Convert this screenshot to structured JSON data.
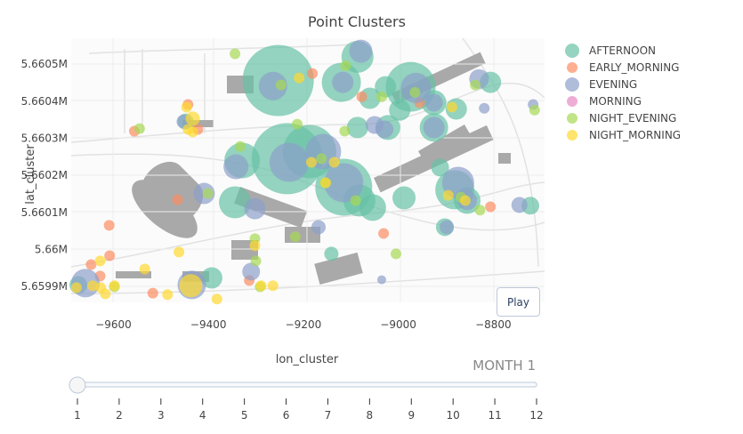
{
  "chart_data": {
    "type": "scatter",
    "title": "Point Clusters",
    "xlabel": "lon_cluster",
    "ylabel": "lat_cluster",
    "xlim": [
      -9689,
      -8692
    ],
    "ylim": [
      5659857,
      5660570
    ],
    "x_ticks": [
      -9600,
      -9400,
      -9200,
      -9000,
      -8800
    ],
    "x_tick_labels": [
      "−9600",
      "−9400",
      "−9200",
      "−9000",
      "−8800"
    ],
    "y_ticks": [
      5660500,
      5660400,
      5660300,
      5660200,
      5660100,
      5660000,
      5659900
    ],
    "y_tick_labels": [
      "5.6605M",
      "5.6604M",
      "5.6603M",
      "5.6602M",
      "5.6601M",
      "5.66M",
      "5.6599M"
    ],
    "legend_position": "right",
    "series": [
      {
        "name": "AFTERNOON",
        "color": "#66c2a5",
        "points": [
          [
            -9253,
            5660456,
            80
          ],
          [
            -8974,
            5660439,
            56
          ],
          [
            -9120,
            5660451,
            44
          ],
          [
            -9086,
            5660520,
            36
          ],
          [
            -9234,
            5660245,
            80
          ],
          [
            -9187,
            5660264,
            60
          ],
          [
            -9115,
            5660168,
            64
          ],
          [
            -9329,
            5660240,
            40
          ],
          [
            -9344,
            5660127,
            36
          ],
          [
            -8881,
            5660161,
            44
          ],
          [
            -8855,
            5660132,
            30
          ],
          [
            -8925,
            5660329,
            32
          ],
          [
            -8925,
            5660396,
            28
          ],
          [
            -8878,
            5660379,
            24
          ],
          [
            -8806,
            5660451,
            24
          ],
          [
            -9027,
            5660439,
            24
          ],
          [
            -9060,
            5660408,
            24
          ],
          [
            -9086,
            5660329,
            24
          ],
          [
            -8997,
            5660376,
            24
          ],
          [
            -9022,
            5660329,
            28
          ],
          [
            -9082,
            5660132,
            36
          ],
          [
            -9054,
            5660113,
            30
          ],
          [
            -8988,
            5660139,
            26
          ],
          [
            -8912,
            5660221,
            20
          ],
          [
            -8902,
            5660060,
            20
          ],
          [
            -8722,
            5660118,
            20
          ],
          [
            -9393,
            5659923,
            24
          ],
          [
            -9674,
            5659904,
            20
          ],
          [
            -9448,
            5660345,
            18
          ],
          [
            -9141,
            5659988,
            16
          ]
        ]
      },
      {
        "name": "EARLY_MORNING",
        "color": "#fc8d62",
        "points": [
          [
            -9181,
            5660475,
            12
          ],
          [
            -9556,
            5660319,
            12
          ],
          [
            -9443,
            5660391,
            12
          ],
          [
            -9465,
            5660134,
            12
          ],
          [
            -9422,
            5660324,
            12
          ],
          [
            -9609,
            5660065,
            12
          ],
          [
            -9608,
            5659983,
            12
          ],
          [
            -9647,
            5659959,
            12
          ],
          [
            -9628,
            5659928,
            12
          ],
          [
            -9517,
            5659882,
            12
          ],
          [
            -9031,
            5660043,
            12
          ],
          [
            -8806,
            5660115,
            12
          ],
          [
            -8955,
            5660396,
            12
          ],
          [
            -9077,
            5660412,
            12
          ],
          [
            -9314,
            5659916,
            12
          ]
        ]
      },
      {
        "name": "EVENING",
        "color": "#8da0cb",
        "points": [
          [
            -9264,
            5660441,
            32
          ],
          [
            -8963,
            5660436,
            34
          ],
          [
            -9117,
            5660451,
            24
          ],
          [
            -9079,
            5660535,
            26
          ],
          [
            -9230,
            5660235,
            44
          ],
          [
            -9158,
            5660264,
            40
          ],
          [
            -9115,
            5660180,
            44
          ],
          [
            -9342,
            5660223,
            28
          ],
          [
            -9302,
            5660110,
            24
          ],
          [
            -9409,
            5660151,
            24
          ],
          [
            -8874,
            5660180,
            36
          ],
          [
            -8855,
            5660132,
            22
          ],
          [
            -8925,
            5660329,
            24
          ],
          [
            -8925,
            5660396,
            20
          ],
          [
            -8830,
            5660460,
            22
          ],
          [
            -9050,
            5660336,
            20
          ],
          [
            -9029,
            5660324,
            20
          ],
          [
            -8898,
            5660060,
            16
          ],
          [
            -8745,
            5660120,
            18
          ],
          [
            -9435,
            5659904,
            32
          ],
          [
            -9659,
            5659909,
            32
          ],
          [
            -9310,
            5659940,
            20
          ],
          [
            -9168,
            5660060,
            16
          ],
          [
            -9035,
            5659918,
            10
          ],
          [
            -8819,
            5660381,
            12
          ],
          [
            -8716,
            5660391,
            12
          ],
          [
            -9452,
            5660345,
            16
          ]
        ]
      },
      {
        "name": "MORNING",
        "color": "#e78ac3",
        "points": []
      },
      {
        "name": "NIGHT_EVENING",
        "color": "#a6d854",
        "points": [
          [
            -9344,
            5660528,
            12
          ],
          [
            -9545,
            5660326,
            12
          ],
          [
            -9333,
            5660278,
            12
          ],
          [
            -9401,
            5660151,
            12
          ],
          [
            -9111,
            5660496,
            12
          ],
          [
            -9035,
            5660412,
            12
          ],
          [
            -9247,
            5660444,
            12
          ],
          [
            -8965,
            5660424,
            12
          ],
          [
            -9213,
            5660338,
            12
          ],
          [
            -9113,
            5660319,
            12
          ],
          [
            -9162,
            5660245,
            12
          ],
          [
            -9154,
            5660180,
            12
          ],
          [
            -9090,
            5660132,
            12
          ],
          [
            -8868,
            5660141,
            12
          ],
          [
            -8828,
            5660106,
            12
          ],
          [
            -9217,
            5660034,
            12
          ],
          [
            -9302,
            5660029,
            12
          ],
          [
            -9300,
            5659969,
            12
          ],
          [
            -9005,
            5659988,
            12
          ],
          [
            -8713,
            5660376,
            12
          ],
          [
            -8838,
            5660444,
            12
          ],
          [
            -9291,
            5659899,
            12
          ],
          [
            -9598,
            5659899,
            12
          ]
        ]
      },
      {
        "name": "NIGHT_MORNING",
        "color": "#ffd92f",
        "points": [
          [
            -9437,
            5659902,
            26
          ],
          [
            -9446,
            5660384,
            12
          ],
          [
            -9433,
            5660353,
            16
          ],
          [
            -9433,
            5660317,
            12
          ],
          [
            -9443,
            5660324,
            12
          ],
          [
            -9209,
            5660463,
            12
          ],
          [
            -9183,
            5660235,
            12
          ],
          [
            -9135,
            5660235,
            12
          ],
          [
            -9153,
            5660180,
            12
          ],
          [
            -8887,
            5660384,
            12
          ],
          [
            -8895,
            5660146,
            12
          ],
          [
            -9302,
            5660010,
            12
          ],
          [
            -9462,
            5659993,
            12
          ],
          [
            -9628,
            5659969,
            12
          ],
          [
            -9627,
            5659897,
            12
          ],
          [
            -9644,
            5659902,
            12
          ],
          [
            -9678,
            5659897,
            12
          ],
          [
            -9598,
            5659902,
            12
          ],
          [
            -9534,
            5659947,
            12
          ],
          [
            -9382,
            5659866,
            12
          ],
          [
            -9289,
            5659902,
            12
          ],
          [
            -9264,
            5659902,
            12
          ],
          [
            -9486,
            5659878,
            12
          ],
          [
            -9617,
            5659880,
            12
          ],
          [
            -8859,
            5660132,
            12
          ]
        ]
      }
    ]
  },
  "controls": {
    "play_label": "Play",
    "slider_prefix": "MONTH",
    "slider_current": "1",
    "slider_steps": [
      "1",
      "2",
      "3",
      "4",
      "5",
      "6",
      "7",
      "8",
      "9",
      "10",
      "11",
      "12"
    ],
    "current_step_index": 0
  }
}
